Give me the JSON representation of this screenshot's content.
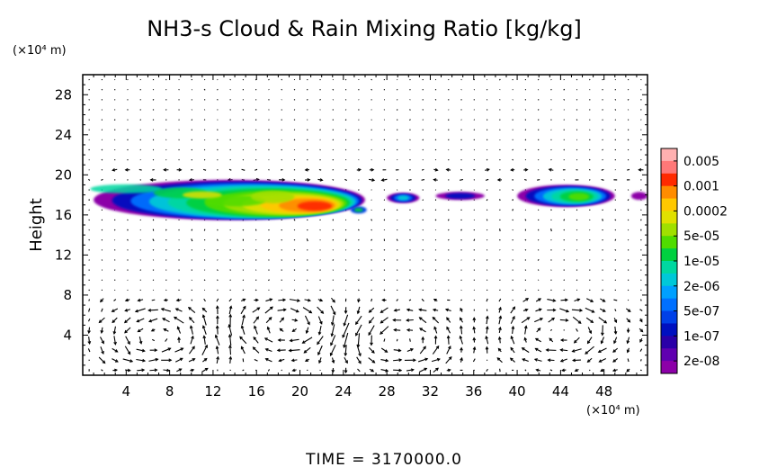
{
  "chart_data": {
    "type": "heatmap",
    "title": "NH3-s Cloud & Rain Mixing Ratio [kg/kg]",
    "ylabel": "Height",
    "y_unit": "(×10⁴ m)",
    "x_unit": "(×10⁴ m)",
    "footer": "TIME = 3170000.0",
    "xlim": [
      0,
      52
    ],
    "ylim": [
      0,
      30
    ],
    "x_ticks": [
      4,
      8,
      12,
      16,
      20,
      24,
      28,
      32,
      36,
      40,
      44,
      48
    ],
    "y_ticks": [
      4,
      8,
      12,
      16,
      20,
      24,
      28
    ],
    "colorbar": {
      "labels": [
        "0.005",
        "0.001",
        "0.0002",
        "5e-05",
        "1e-05",
        "2e-06",
        "5e-07",
        "1e-07",
        "2e-08"
      ],
      "colors": [
        "#ffb0b0",
        "#ff7878",
        "#ff2a00",
        "#ff8c00",
        "#ffc800",
        "#e0e000",
        "#a0e000",
        "#50dc00",
        "#00d040",
        "#00d8a0",
        "#00c8d8",
        "#00a0ff",
        "#0070ff",
        "#0040e8",
        "#0010c0",
        "#2a00a8",
        "#6000b0",
        "#8c00a8"
      ]
    },
    "cloud_regions": [
      {
        "x_range": [
          1,
          26
        ],
        "y_range": [
          15.5,
          19.5
        ],
        "max_level": "0.001",
        "peak": {
          "x": 22.5,
          "y": 16.8
        }
      },
      {
        "x_range": [
          28,
          31
        ],
        "y_range": [
          17.2,
          18.2
        ],
        "max_level": "5e-07"
      },
      {
        "x_range": [
          32.5,
          37
        ],
        "y_range": [
          17.5,
          18.3
        ],
        "max_level": "1e-07"
      },
      {
        "x_range": [
          40,
          49
        ],
        "y_range": [
          16.8,
          19
        ],
        "max_level": "1e-05",
        "peak": {
          "x": 46,
          "y": 17.8
        }
      },
      {
        "x_range": [
          50.5,
          52
        ],
        "y_range": [
          17.5,
          18.3
        ],
        "max_level": "2e-08"
      }
    ],
    "wind_vectors": "quiver field; strongest flow around heights 2–8 (circulation cells) and near 18–20"
  }
}
